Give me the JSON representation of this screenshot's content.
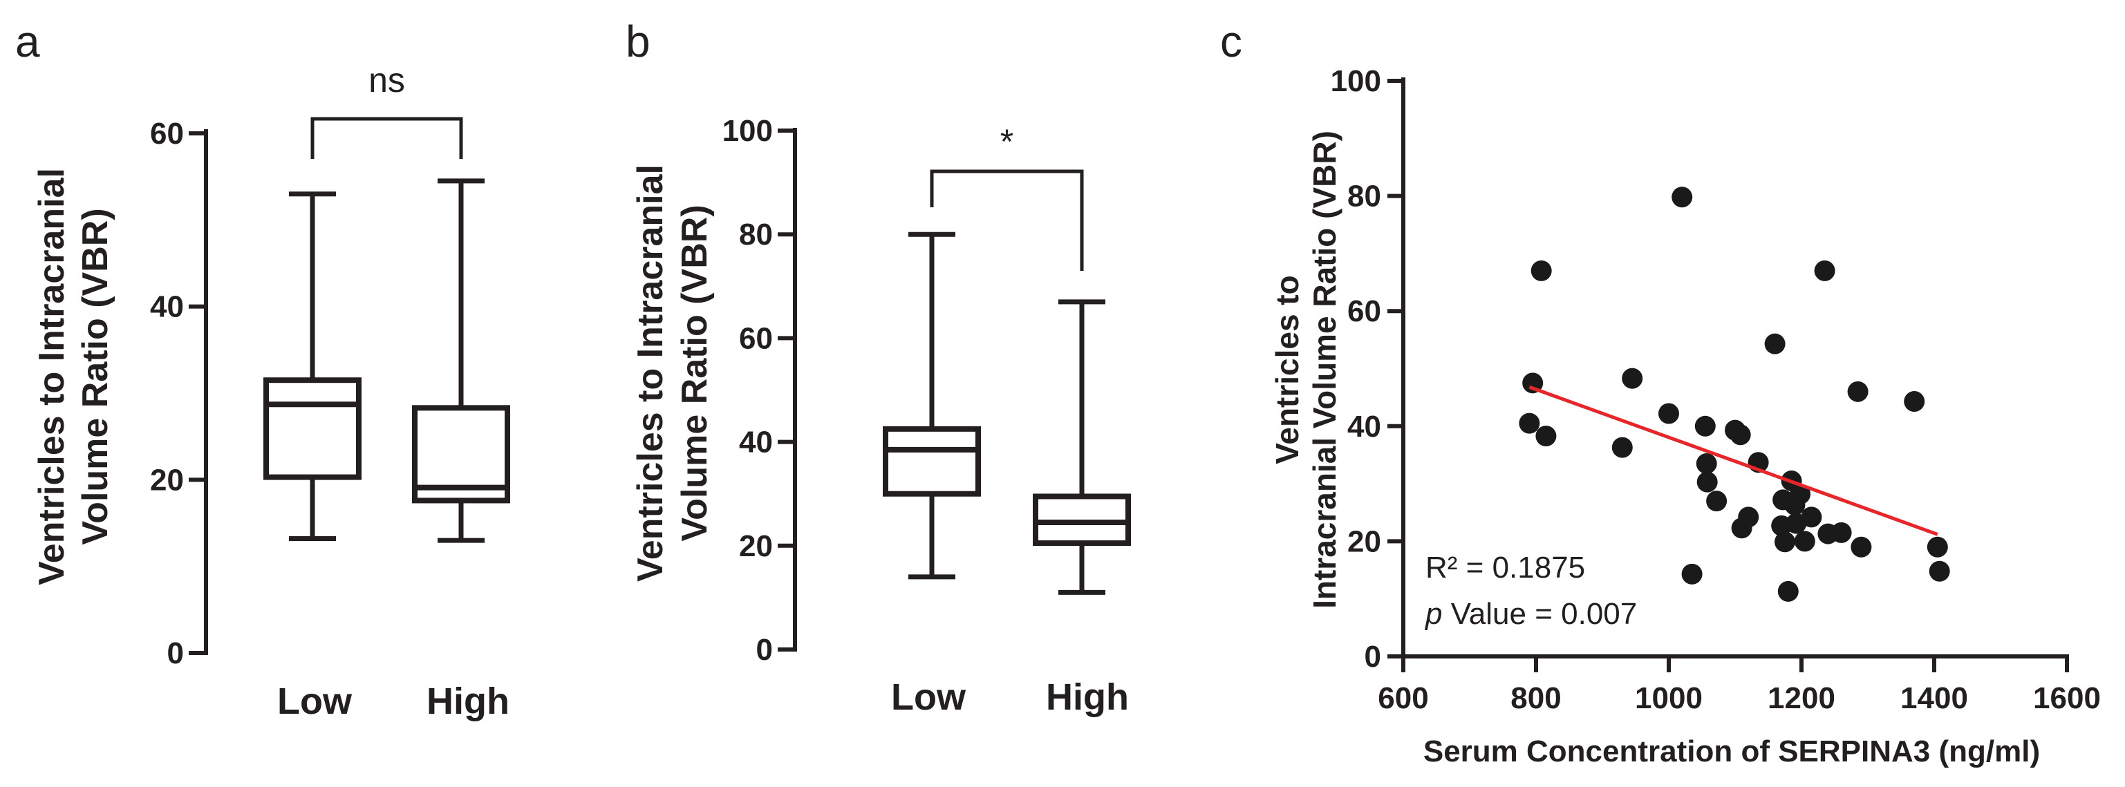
{
  "chart_data": [
    {
      "panel": "a",
      "type": "box",
      "ylabel_lines": [
        "Ventricles to Intracranial",
        "Volume Ratio (VBR)"
      ],
      "ylim": [
        0,
        60
      ],
      "yticks": [
        0,
        20,
        40,
        60
      ],
      "categories": [
        "Low",
        "High"
      ],
      "boxes": [
        {
          "name": "Low",
          "min": 13.2,
          "q1": 20.3,
          "median": 28.7,
          "q3": 31.5,
          "max": 53.0
        },
        {
          "name": "High",
          "min": 13.0,
          "q1": 17.6,
          "median": 19.1,
          "q3": 28.3,
          "max": 54.5
        }
      ],
      "significance": "ns"
    },
    {
      "panel": "b",
      "type": "box",
      "ylabel_lines": [
        "Ventricles to Intracranial",
        "Volume Ratio (VBR)"
      ],
      "ylim": [
        0,
        100
      ],
      "yticks": [
        0,
        20,
        40,
        60,
        80,
        100
      ],
      "categories": [
        "Low",
        "High"
      ],
      "boxes": [
        {
          "name": "Low",
          "min": 14.0,
          "q1": 30.0,
          "median": 38.5,
          "q3": 42.5,
          "max": 80.0
        },
        {
          "name": "High",
          "min": 11.0,
          "q1": 20.5,
          "median": 24.5,
          "q3": 29.5,
          "max": 67.0
        }
      ],
      "significance": "*"
    },
    {
      "panel": "c",
      "type": "scatter",
      "ylabel_lines": [
        "Ventricles to",
        "Intracranial Volume Ratio (VBR)"
      ],
      "xlabel": "Serum Concentration of SERPINA3 (ng/ml)",
      "xlim": [
        600,
        1600
      ],
      "ylim": [
        0,
        100
      ],
      "xticks": [
        600,
        800,
        1000,
        1200,
        1400,
        1600
      ],
      "yticks": [
        0,
        20,
        40,
        60,
        80,
        100
      ],
      "points": [
        [
          790,
          40.5
        ],
        [
          795,
          47.5
        ],
        [
          808,
          67
        ],
        [
          815,
          38.3
        ],
        [
          930,
          36.3
        ],
        [
          945,
          48.3
        ],
        [
          1000,
          42.2
        ],
        [
          1020,
          79.8
        ],
        [
          1035,
          14.3
        ],
        [
          1055,
          40
        ],
        [
          1057,
          33.5
        ],
        [
          1058,
          30.3
        ],
        [
          1072,
          27
        ],
        [
          1100,
          39.3
        ],
        [
          1108,
          38.5
        ],
        [
          1110,
          22.3
        ],
        [
          1120,
          24.2
        ],
        [
          1135,
          33.7
        ],
        [
          1160,
          54.3
        ],
        [
          1170,
          22.7
        ],
        [
          1172,
          27.2
        ],
        [
          1175,
          19.9
        ],
        [
          1180,
          11.3
        ],
        [
          1185,
          30.5
        ],
        [
          1190,
          26.3
        ],
        [
          1192,
          23.1
        ],
        [
          1198,
          28.2
        ],
        [
          1205,
          20
        ],
        [
          1215,
          24.2
        ],
        [
          1235,
          67
        ],
        [
          1240,
          21.3
        ],
        [
          1260,
          21.5
        ],
        [
          1285,
          46
        ],
        [
          1290,
          19
        ],
        [
          1370,
          44.3
        ],
        [
          1405,
          19
        ],
        [
          1408,
          14.8
        ]
      ],
      "fit_line": {
        "x": [
          790,
          1405
        ],
        "y": [
          46.8,
          21.2
        ]
      },
      "stats_prefix": "R² = ",
      "r_squared": "0.1875",
      "p_italic": "p",
      "p_label": " Value = ",
      "p_value": "0.007"
    }
  ]
}
